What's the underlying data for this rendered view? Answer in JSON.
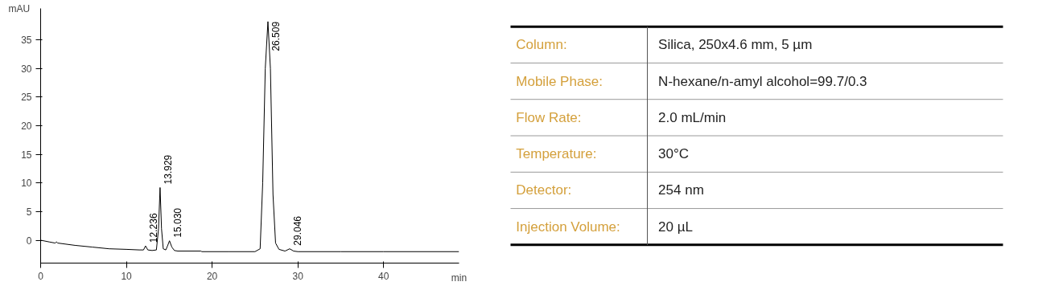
{
  "chart_data": [
    {
      "type": "line",
      "xlabel": "min",
      "ylabel": "mAU",
      "xlim": [
        0,
        48.8
      ],
      "ylim": [
        -4,
        40.5
      ],
      "xticks": [
        0,
        10,
        20,
        30,
        40
      ],
      "yticks": [
        0,
        5,
        10,
        15,
        20,
        25,
        30,
        35
      ],
      "grid": false,
      "series": [
        {
          "color": "#000000",
          "x": [
            0,
            1,
            1.7,
            1.85,
            2,
            4,
            6,
            8,
            10,
            11.5,
            12.0,
            12.236,
            12.5,
            13.0,
            13.5,
            13.75,
            13.929,
            14.1,
            14.3,
            14.6,
            14.8,
            15.03,
            15.3,
            15.6,
            16,
            18.7,
            18.8,
            22,
            25,
            25.6,
            25.9,
            26.2,
            26.509,
            26.8,
            27.1,
            27.4,
            27.8,
            28.5,
            29.046,
            29.5,
            30,
            35,
            40,
            48.8
          ],
          "values": [
            0,
            -0.3,
            -0.5,
            -0.3,
            -0.5,
            -0.9,
            -1.2,
            -1.5,
            -1.6,
            -1.7,
            -1.7,
            -1.0,
            -1.7,
            -1.8,
            -1.7,
            2,
            9.2,
            2,
            -1.5,
            -1.7,
            -1.0,
            -0.1,
            -1.2,
            -1.8,
            -1.9,
            -1.9,
            -2.0,
            -2.0,
            -2.0,
            -1.5,
            10,
            30,
            38.2,
            30,
            8,
            -0.5,
            -1.6,
            -1.9,
            -1.5,
            -1.9,
            -2.0,
            -2.0,
            -2.0,
            -2.0
          ]
        }
      ],
      "annotations": [
        {
          "text": "12.236",
          "x": 12.236,
          "y": -1.0
        },
        {
          "text": "13.929",
          "x": 13.929,
          "y": 9.2
        },
        {
          "text": "15.030",
          "x": 15.03,
          "y": -0.1
        },
        {
          "text": "26.509",
          "x": 26.509,
          "y": 38.2
        },
        {
          "text": "29.046",
          "x": 29.046,
          "y": -1.5
        }
      ]
    },
    {
      "type": "other",
      "annotations": [
        "Column:",
        "Silica, 250x4.6 mm, 5 µm",
        "Mobile Phase:",
        "N-hexane/n-amyl alcohol=99.7/0.3",
        "Flow Rate:",
        "2.0 mL/min",
        "Temperature:",
        "30°C",
        "Detector:",
        "254 nm",
        "Injection Volume:",
        "20 µL"
      ]
    }
  ]
}
